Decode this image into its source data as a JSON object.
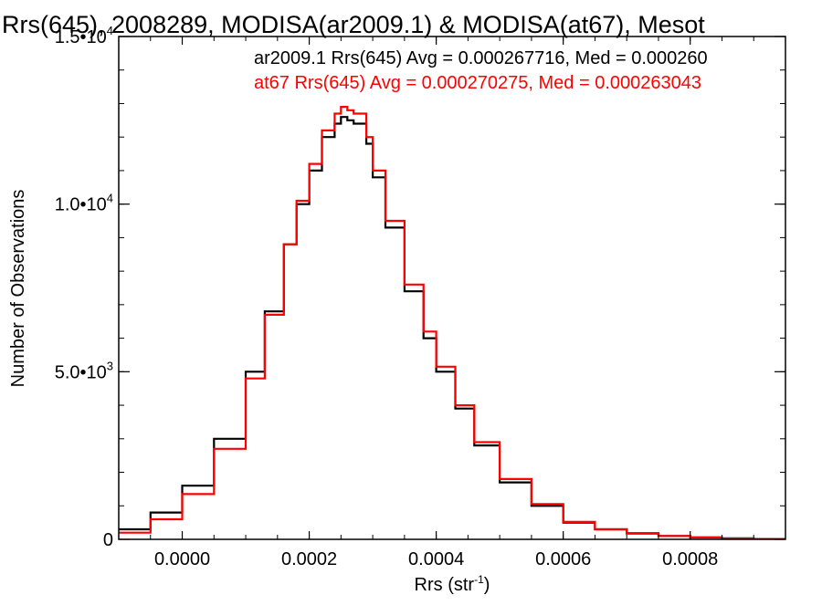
{
  "chart_data": {
    "type": "line",
    "title": "Rrs(645), 2008289, MODISA(ar2009.1) & MODISA(at67), Mesot",
    "xlabel": "Rrs (str",
    "xlabel_sup": "-1",
    "xlabel_close": ")",
    "ylabel": "Number of Observations",
    "xlim": [
      -0.0001,
      0.00095
    ],
    "ylim": [
      0,
      15000
    ],
    "x_ticks": [
      {
        "value": 0.0,
        "label": "0.0000"
      },
      {
        "value": 0.0002,
        "label": "0.0002"
      },
      {
        "value": 0.0004,
        "label": "0.0004"
      },
      {
        "value": 0.0006,
        "label": "0.0006"
      },
      {
        "value": 0.0008,
        "label": "0.0008"
      }
    ],
    "y_ticks": [
      {
        "value": 0,
        "label": "0",
        "sup": ""
      },
      {
        "value": 5000,
        "label": "5.0•10",
        "sup": "3"
      },
      {
        "value": 10000,
        "label": "1.0•10",
        "sup": "4"
      },
      {
        "value": 15000,
        "label": "1.5•10",
        "sup": "4"
      }
    ],
    "annotations": [
      {
        "text": "ar2009.1 Rrs(645) Avg = 0.000267716, Med = 0.000260",
        "color": "#000000"
      },
      {
        "text": "at67 Rrs(645) Avg = 0.000270275, Med = 0.000263043",
        "color": "#ff0000"
      }
    ],
    "grid": false,
    "series": [
      {
        "color": "#000000",
        "x": [
          -0.0001,
          -5e-05,
          0.0,
          5e-05,
          0.0001,
          0.00013,
          0.00016,
          0.00018,
          0.0002,
          0.00022,
          0.00024,
          0.00025,
          0.00026,
          0.00027,
          0.00029,
          0.0003,
          0.00032,
          0.00035,
          0.00038,
          0.0004,
          0.00043,
          0.00046,
          0.0005,
          0.00055,
          0.0006,
          0.00065,
          0.0007,
          0.00075,
          0.0008,
          0.00085,
          0.0009,
          0.00095
        ],
        "y": [
          300,
          800,
          1600,
          3000,
          5000,
          6800,
          8800,
          10000,
          11000,
          12000,
          12400,
          12600,
          12500,
          12400,
          11800,
          10800,
          9300,
          7400,
          6000,
          5000,
          3900,
          2800,
          1700,
          1000,
          500,
          300,
          180,
          100,
          60,
          30,
          10,
          0
        ]
      },
      {
        "color": "#ff0000",
        "x": [
          -0.0001,
          -5e-05,
          0.0,
          5e-05,
          0.0001,
          0.00013,
          0.00016,
          0.00018,
          0.0002,
          0.00022,
          0.00024,
          0.00025,
          0.00026,
          0.00027,
          0.00029,
          0.0003,
          0.00032,
          0.00035,
          0.00038,
          0.0004,
          0.00043,
          0.00046,
          0.0005,
          0.00055,
          0.0006,
          0.00065,
          0.0007,
          0.00075,
          0.0008,
          0.00085,
          0.0009,
          0.00095
        ],
        "y": [
          200,
          600,
          1350,
          2700,
          4800,
          6700,
          8800,
          10100,
          11200,
          12200,
          12700,
          12900,
          12800,
          12700,
          12000,
          11000,
          9500,
          7600,
          6200,
          5150,
          4000,
          2900,
          1800,
          1050,
          520,
          300,
          170,
          100,
          55,
          25,
          8,
          0
        ]
      }
    ]
  }
}
